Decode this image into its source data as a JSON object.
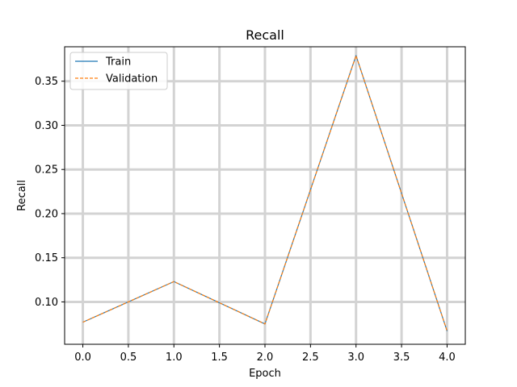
{
  "chart_data": {
    "type": "line",
    "title": "Recall",
    "xlabel": "Epoch",
    "ylabel": "Recall",
    "x": [
      0,
      1,
      2,
      3,
      4
    ],
    "xticks": [
      "0.0",
      "0.5",
      "1.0",
      "1.5",
      "2.0",
      "2.5",
      "3.0",
      "3.5",
      "4.0"
    ],
    "yticks": [
      "0.10",
      "0.15",
      "0.20",
      "0.25",
      "0.30",
      "0.35"
    ],
    "xlim": [
      -0.2,
      4.2
    ],
    "ylim": [
      0.052,
      0.389
    ],
    "grid": true,
    "legend_position": "top-left",
    "series": [
      {
        "name": "Train",
        "values": [
          0.077,
          0.123,
          0.075,
          0.379,
          0.067
        ],
        "color": "#1f77b4",
        "style": "solid"
      },
      {
        "name": "Validation",
        "values": [
          0.077,
          0.123,
          0.075,
          0.379,
          0.067
        ],
        "color": "#ff7f0e",
        "style": "dashed"
      }
    ]
  }
}
